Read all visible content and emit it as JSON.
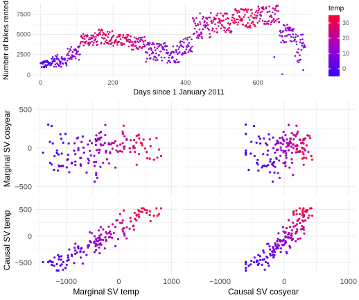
{
  "chart_data": [
    {
      "id": "rentals",
      "type": "scatter",
      "xlabel": "Days since 1 January 2011",
      "ylabel": "Number of bikes rented",
      "xlim": [
        -20,
        745
      ],
      "ylim": [
        -350,
        8900
      ],
      "xticks": [
        0,
        200,
        400,
        600
      ],
      "yticks": [
        0,
        2500,
        5000,
        7500
      ],
      "color_variable": "temp",
      "segments": [
        {
          "x0": 0,
          "x1": 30,
          "ylo": 800,
          "yhi": 1800,
          "tlo": 0.02,
          "thi": 0.18
        },
        {
          "x0": 30,
          "x1": 75,
          "ylo": 1000,
          "yhi": 2500,
          "tlo": 0.15,
          "thi": 0.32
        },
        {
          "x0": 75,
          "x1": 110,
          "ylo": 1800,
          "yhi": 3600,
          "tlo": 0.3,
          "thi": 0.55
        },
        {
          "x0": 110,
          "x1": 160,
          "ylo": 3600,
          "yhi": 5200,
          "tlo": 0.6,
          "thi": 0.85
        },
        {
          "x0": 160,
          "x1": 200,
          "ylo": 3800,
          "yhi": 5600,
          "tlo": 0.7,
          "thi": 0.95
        },
        {
          "x0": 200,
          "x1": 250,
          "ylo": 3500,
          "yhi": 5000,
          "tlo": 0.75,
          "thi": 0.95
        },
        {
          "x0": 250,
          "x1": 290,
          "ylo": 3000,
          "yhi": 4800,
          "tlo": 0.5,
          "thi": 0.78
        },
        {
          "x0": 290,
          "x1": 345,
          "ylo": 1600,
          "yhi": 4000,
          "tlo": 0.3,
          "thi": 0.55
        },
        {
          "x0": 345,
          "x1": 385,
          "ylo": 1500,
          "yhi": 3800,
          "tlo": 0.2,
          "thi": 0.42
        },
        {
          "x0": 385,
          "x1": 420,
          "ylo": 2500,
          "yhi": 4700,
          "tlo": 0.28,
          "thi": 0.5
        },
        {
          "x0": 420,
          "x1": 470,
          "ylo": 4500,
          "yhi": 7200,
          "tlo": 0.45,
          "thi": 0.75
        },
        {
          "x0": 470,
          "x1": 530,
          "ylo": 5200,
          "yhi": 7800,
          "tlo": 0.65,
          "thi": 0.9
        },
        {
          "x0": 530,
          "x1": 600,
          "ylo": 5800,
          "yhi": 8200,
          "tlo": 0.75,
          "thi": 1.0
        },
        {
          "x0": 600,
          "x1": 660,
          "ylo": 6200,
          "yhi": 8600,
          "tlo": 0.55,
          "thi": 0.82
        },
        {
          "x0": 660,
          "x1": 700,
          "ylo": 3800,
          "yhi": 6200,
          "tlo": 0.3,
          "thi": 0.5
        },
        {
          "x0": 700,
          "x1": 731,
          "ylo": 1500,
          "yhi": 5000,
          "tlo": 0.2,
          "thi": 0.38
        }
      ],
      "outliers": [
        {
          "x": 667,
          "y": 100,
          "t": 0.45
        },
        {
          "x": 645,
          "y": 2200,
          "t": 0.4
        },
        {
          "x": 725,
          "y": 600,
          "t": 0.22
        },
        {
          "x": 302,
          "y": 2000,
          "t": 0.35
        },
        {
          "x": 440,
          "y": 7600,
          "t": 0.55
        },
        {
          "x": 690,
          "y": 4200,
          "t": 0.4
        }
      ]
    },
    {
      "id": "sv_panels",
      "type": "scatter",
      "xlabels": [
        "Marginal SV temp",
        "Causal SV cosyear"
      ],
      "ylabels": [
        "Marginal SV cosyear",
        "Causal SV temp"
      ],
      "xlim": [
        -1600,
        1100
      ],
      "xticks": [
        -1000,
        0,
        1000
      ],
      "ylim_row1": [
        -620,
        610
      ],
      "yticks_row1": [
        -500,
        0,
        500
      ],
      "ylim_row2": [
        -720,
        650
      ],
      "yticks_row2": [
        -500,
        0,
        500
      ]
    }
  ],
  "legend": {
    "title": "temp",
    "ticks": [
      30,
      20,
      10,
      0
    ],
    "range": [
      -5,
      35
    ],
    "colors": {
      "low": "#3a00ff",
      "mid": "#a300c8",
      "high": "#ff0033"
    }
  }
}
